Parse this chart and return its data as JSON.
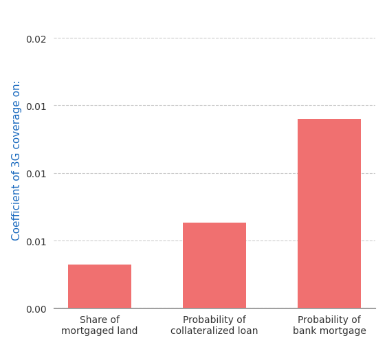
{
  "categories": [
    "Share of\nmortgaged land",
    "Probability of\ncollateralized loan",
    "Probability of\nbank mortgage"
  ],
  "values": [
    0.0032,
    0.0063,
    0.014
  ],
  "bar_color": "#F07070",
  "ylabel": "Coefficient of 3G coverage on:",
  "ylabel_color": "#1a6abf",
  "ylim": [
    0,
    0.022
  ],
  "yticks": [
    0.0,
    0.005,
    0.01,
    0.015,
    0.02
  ],
  "ytick_labels": [
    "0.00",
    "0.01",
    "0.01",
    "0.01",
    "0.02"
  ],
  "grid_color": "#cccccc",
  "grid_linestyle": "--",
  "bar_width": 0.55,
  "background_color": "#ffffff",
  "spine_color": "#555555",
  "label_fontsize": 10,
  "ylabel_fontsize": 11,
  "axis_color": "#555555"
}
